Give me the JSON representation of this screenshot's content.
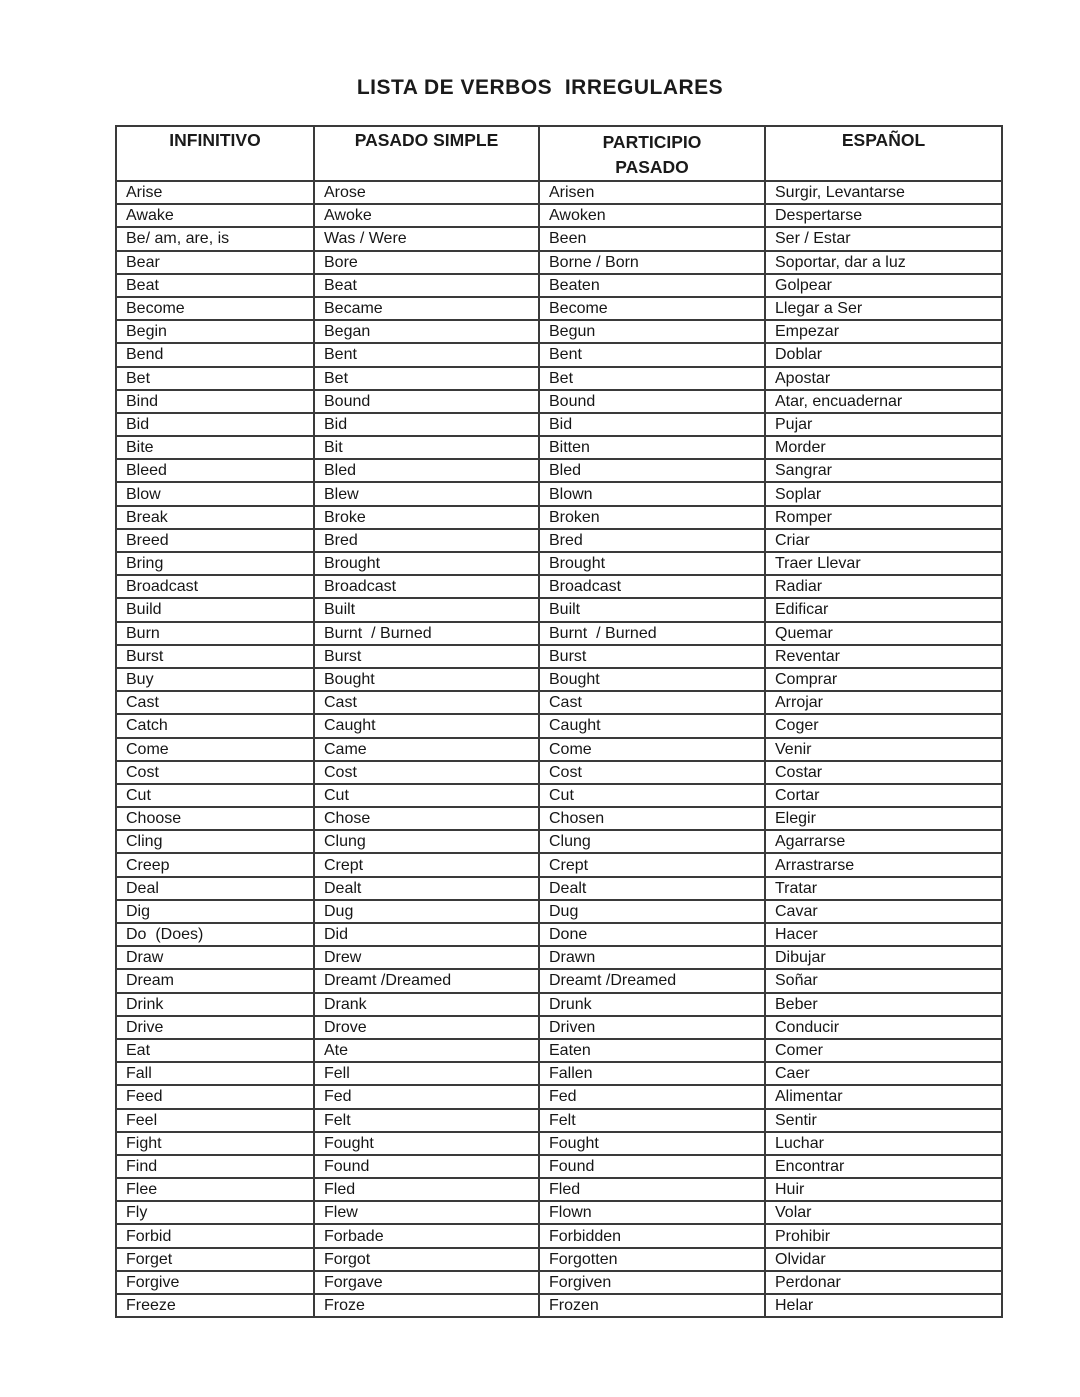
{
  "page": {
    "title": "LISTA DE VERBOS  IRREGULARES"
  },
  "table": {
    "headers": [
      "INFINITIVO",
      "PASADO SIMPLE",
      "PARTICIPIO PASADO",
      "ESPAÑOL"
    ],
    "rows": [
      [
        "Arise",
        "Arose",
        "Arisen",
        "Surgir, Levantarse"
      ],
      [
        "Awake",
        "Awoke",
        "Awoken",
        "Despertarse"
      ],
      [
        "Be/ am, are, is",
        "Was / Were",
        "Been",
        "Ser / Estar"
      ],
      [
        "Bear",
        "Bore",
        "Borne / Born",
        "Soportar, dar a luz"
      ],
      [
        "Beat",
        "Beat",
        "Beaten",
        "Golpear"
      ],
      [
        "Become",
        "Became",
        "Become",
        "Llegar a Ser"
      ],
      [
        "Begin",
        "Began",
        "Begun",
        "Empezar"
      ],
      [
        "Bend",
        "Bent",
        "Bent",
        "Doblar"
      ],
      [
        "Bet",
        "Bet",
        "Bet",
        "Apostar"
      ],
      [
        "Bind",
        "Bound",
        "Bound",
        "Atar, encuadernar"
      ],
      [
        "Bid",
        "Bid",
        "Bid",
        "Pujar"
      ],
      [
        "Bite",
        "Bit",
        "Bitten",
        "Morder"
      ],
      [
        "Bleed",
        "Bled",
        "Bled",
        "Sangrar"
      ],
      [
        "Blow",
        "Blew",
        "Blown",
        "Soplar"
      ],
      [
        "Break",
        "Broke",
        "Broken",
        "Romper"
      ],
      [
        "Breed",
        "Bred",
        "Bred",
        "Criar"
      ],
      [
        "Bring",
        "Brought",
        "Brought",
        "Traer Llevar"
      ],
      [
        "Broadcast",
        "Broadcast",
        "Broadcast",
        "Radiar"
      ],
      [
        "Build",
        "Built",
        "Built",
        "Edificar"
      ],
      [
        "Burn",
        "Burnt  / Burned",
        "Burnt  / Burned",
        "Quemar"
      ],
      [
        "Burst",
        "Burst",
        "Burst",
        "Reventar"
      ],
      [
        "Buy",
        "Bought",
        "Bought",
        "Comprar"
      ],
      [
        "Cast",
        "Cast",
        "Cast",
        "Arrojar"
      ],
      [
        "Catch",
        "Caught",
        "Caught",
        "Coger"
      ],
      [
        "Come",
        "Came",
        "Come",
        "Venir"
      ],
      [
        "Cost",
        "Cost",
        "Cost",
        "Costar"
      ],
      [
        "Cut",
        "Cut",
        "Cut",
        "Cortar"
      ],
      [
        "Choose",
        "Chose",
        "Chosen",
        "Elegir"
      ],
      [
        "Cling",
        "Clung",
        "Clung",
        "Agarrarse"
      ],
      [
        "Creep",
        "Crept",
        "Crept",
        "Arrastrarse"
      ],
      [
        "Deal",
        "Dealt",
        "Dealt",
        "Tratar"
      ],
      [
        "Dig",
        "Dug",
        "Dug",
        "Cavar"
      ],
      [
        "Do  (Does)",
        "Did",
        "Done",
        "Hacer"
      ],
      [
        "Draw",
        "Drew",
        "Drawn",
        "Dibujar"
      ],
      [
        "Dream",
        "Dreamt /Dreamed",
        "Dreamt /Dreamed",
        "Soñar"
      ],
      [
        "Drink",
        "Drank",
        "Drunk",
        "Beber"
      ],
      [
        "Drive",
        "Drove",
        "Driven",
        "Conducir"
      ],
      [
        "Eat",
        "Ate",
        "Eaten",
        "Comer"
      ],
      [
        "Fall",
        "Fell",
        "Fallen",
        "Caer"
      ],
      [
        "Feed",
        "Fed",
        "Fed",
        "Alimentar"
      ],
      [
        "Feel",
        "Felt",
        "Felt",
        "Sentir"
      ],
      [
        "Fight",
        "Fought",
        "Fought",
        "Luchar"
      ],
      [
        "Find",
        "Found",
        "Found",
        "Encontrar"
      ],
      [
        "Flee",
        "Fled",
        "Fled",
        "Huir"
      ],
      [
        "Fly",
        "Flew",
        "Flown",
        "Volar"
      ],
      [
        "Forbid",
        "Forbade",
        "Forbidden",
        "Prohibir"
      ],
      [
        "Forget",
        "Forgot",
        "Forgotten",
        "Olvidar"
      ],
      [
        "Forgive",
        "Forgave",
        "Forgiven",
        "Perdonar"
      ],
      [
        "Freeze",
        "Froze",
        "Frozen",
        "Helar"
      ]
    ]
  }
}
